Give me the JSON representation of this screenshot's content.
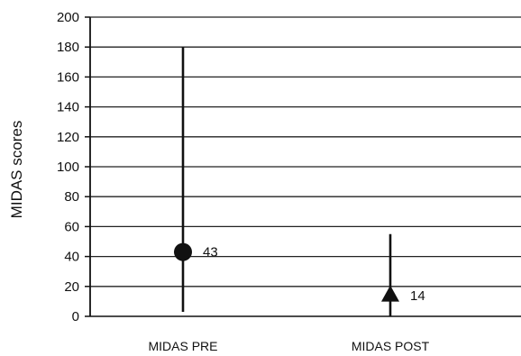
{
  "chart_data": {
    "type": "scatter",
    "ylabel": "MIDAS scores",
    "ylim": [
      0,
      200
    ],
    "y_ticks": [
      0,
      20,
      40,
      60,
      80,
      100,
      120,
      140,
      160,
      180,
      200
    ],
    "grid": "horizontal",
    "categories": [
      "MIDAS PRE",
      "MIDAS POST"
    ],
    "points": [
      {
        "category": "MIDAS PRE",
        "value": 43,
        "label": "43",
        "marker": "circle",
        "low": 3,
        "high": 180
      },
      {
        "category": "MIDAS POST",
        "value": 14,
        "label": "14",
        "marker": "triangle",
        "low": 0,
        "high": 55
      }
    ]
  },
  "colors": {
    "ink": "#111111",
    "grid": "#222222",
    "background": "#ffffff"
  }
}
